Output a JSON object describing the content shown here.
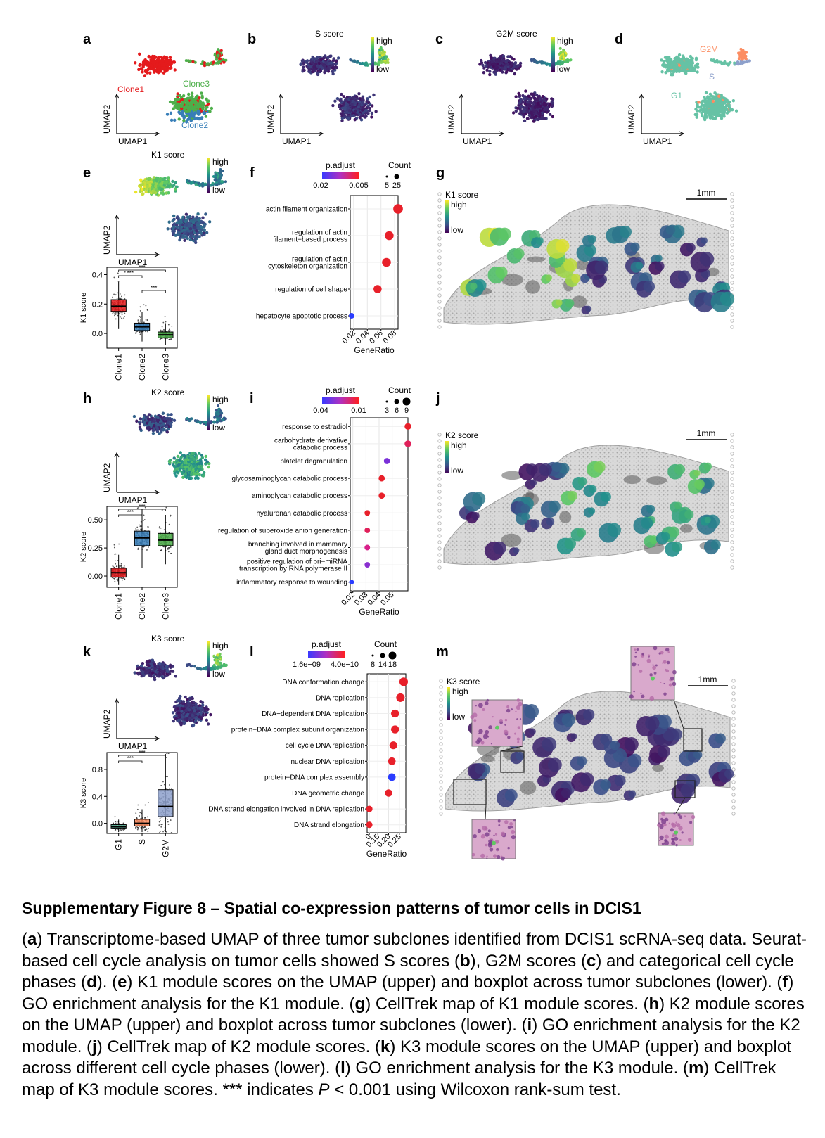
{
  "figure": {
    "panel_letters": [
      "a",
      "b",
      "c",
      "d",
      "e",
      "f",
      "g",
      "h",
      "i",
      "j",
      "k",
      "l",
      "m"
    ],
    "umap": {
      "xlabel": "UMAP1",
      "ylabel": "UMAP2",
      "high": "high",
      "low": "low",
      "a_labels": [
        "Clone1",
        "Clone3",
        "Clone2"
      ],
      "d_labels": [
        "G2M",
        "S",
        "G1"
      ],
      "b_title": "S score",
      "c_title": "G2M score",
      "e_title": "K1 score",
      "h_title": "K2 score",
      "k_title": "K3 score"
    },
    "colors": {
      "clone1": "#e41a1c",
      "clone2": "#377eb8",
      "clone3": "#4daf4a",
      "g1": "#66c2a5",
      "s": "#8da0cb",
      "g2m": "#fc8d62",
      "viridis_low": "#440154",
      "viridis_high": "#fde725",
      "padj_low": "#1f1fff",
      "padj_high": "#ff1f1f"
    },
    "spatial": {
      "scale_label": "1mm",
      "g_title": "K1 score",
      "j_title": "K2 score",
      "m_title": "K3 score",
      "high": "high",
      "low": "low"
    },
    "significance": "***"
  },
  "chart_data": [
    {
      "panel": "e",
      "type": "box",
      "ylabel": "K1 score",
      "categories": [
        "Clone1",
        "Clone2",
        "Clone3"
      ],
      "yticks": [
        "0.0",
        "0.2",
        "0.4"
      ],
      "ylim": [
        -0.1,
        0.45
      ],
      "boxes": [
        {
          "q1": 0.15,
          "median": 0.185,
          "q3": 0.23,
          "color": "#e41a1c"
        },
        {
          "q1": 0.02,
          "median": 0.045,
          "q3": 0.07,
          "color": "#377eb8"
        },
        {
          "q1": -0.03,
          "median": -0.01,
          "q3": 0.01,
          "color": "#4daf4a"
        }
      ]
    },
    {
      "panel": "h",
      "type": "box",
      "ylabel": "K2 score",
      "categories": [
        "Clone1",
        "Clone2",
        "Clone3"
      ],
      "yticks": [
        "0.00",
        "0.25",
        "0.50"
      ],
      "ylim": [
        -0.1,
        0.62
      ],
      "boxes": [
        {
          "q1": -0.01,
          "median": 0.03,
          "q3": 0.07,
          "color": "#e41a1c"
        },
        {
          "q1": 0.27,
          "median": 0.34,
          "q3": 0.4,
          "color": "#377eb8"
        },
        {
          "q1": 0.27,
          "median": 0.32,
          "q3": 0.38,
          "color": "#4daf4a"
        }
      ]
    },
    {
      "panel": "k",
      "type": "box",
      "ylabel": "K3 score",
      "categories": [
        "G1",
        "S",
        "G2M"
      ],
      "yticks": [
        "0.0",
        "0.4",
        "0.8"
      ],
      "ylim": [
        -0.15,
        1.05
      ],
      "boxes": [
        {
          "q1": -0.07,
          "median": -0.05,
          "q3": -0.02,
          "color": "#66c2a5"
        },
        {
          "q1": -0.04,
          "median": 0.0,
          "q3": 0.06,
          "color": "#fc8d62"
        },
        {
          "q1": 0.1,
          "median": 0.25,
          "q3": 0.5,
          "color": "#8da0cb"
        }
      ]
    },
    {
      "panel": "f",
      "type": "dotplot",
      "xlabel": "GeneRatio",
      "legend_title_color": "p.adjust",
      "legend_color_ticks": [
        "0.02",
        "0.005"
      ],
      "legend_title_size": "Count",
      "legend_size_ticks": [
        "5",
        "25"
      ],
      "xticks": [
        "0.02",
        "0.04",
        "0.06",
        "0.08"
      ],
      "xlim": [
        0.015,
        0.085
      ],
      "terms": [
        {
          "label": [
            "actin filament organization"
          ],
          "x": 0.085,
          "color": "#e8202a",
          "size": 25
        },
        {
          "label": [
            "regulation of actin",
            "filament−based process"
          ],
          "x": 0.072,
          "color": "#e8202a",
          "size": 20
        },
        {
          "label": [
            "regulation of actin",
            "cytoskeleton organization"
          ],
          "x": 0.068,
          "color": "#e8202a",
          "size": 20
        },
        {
          "label": [
            "regulation of cell shape"
          ],
          "x": 0.055,
          "color": "#e8202a",
          "size": 16
        },
        {
          "label": [
            "hepatocyte apoptotic process"
          ],
          "x": 0.017,
          "color": "#2a3cff",
          "size": 5
        }
      ]
    },
    {
      "panel": "i",
      "type": "dotplot",
      "xlabel": "GeneRatio",
      "legend_title_color": "p.adjust",
      "legend_color_ticks": [
        "0.04",
        "0.01"
      ],
      "legend_title_size": "Count",
      "legend_size_ticks": [
        "3",
        "6",
        "9"
      ],
      "xticks": [
        "0.02",
        "0.03",
        "0.04",
        "0.05"
      ],
      "xlim": [
        0.018,
        0.062
      ],
      "terms": [
        {
          "label": [
            "response to estradiol"
          ],
          "x": 0.062,
          "color": "#e8202a",
          "size": 9
        },
        {
          "label": [
            "carbohydrate derivative",
            "catabolic process"
          ],
          "x": 0.062,
          "color": "#e0205a",
          "size": 9
        },
        {
          "label": [
            "platelet degranulation"
          ],
          "x": 0.046,
          "color": "#7a30d8",
          "size": 7
        },
        {
          "label": [
            "glycosaminoglycan catabolic process"
          ],
          "x": 0.042,
          "color": "#e8202a",
          "size": 7
        },
        {
          "label": [
            "aminoglycan catabolic process"
          ],
          "x": 0.042,
          "color": "#e8202a",
          "size": 7
        },
        {
          "label": [
            "hyaluronan catabolic process"
          ],
          "x": 0.031,
          "color": "#e8202a",
          "size": 5
        },
        {
          "label": [
            "regulation of superoxide anion generation"
          ],
          "x": 0.031,
          "color": "#e0205a",
          "size": 5
        },
        {
          "label": [
            "branching involved in mammary",
            "gland duct morphogenesis"
          ],
          "x": 0.031,
          "color": "#d8208a",
          "size": 5
        },
        {
          "label": [
            "positive regulation of pri−miRNA",
            "transcription by RNA polymerase II"
          ],
          "x": 0.031,
          "color": "#8a30d0",
          "size": 5
        },
        {
          "label": [
            "inflammatory response to wounding"
          ],
          "x": 0.019,
          "color": "#2a3cff",
          "size": 3
        }
      ]
    },
    {
      "panel": "l",
      "type": "dotplot",
      "xlabel": "GeneRatio",
      "legend_title_color": "p.adjust",
      "legend_color_ticks": [
        "1.6e−09",
        "4.0e−10"
      ],
      "legend_title_size": "Count",
      "legend_size_ticks": [
        "8",
        "14",
        "18"
      ],
      "xticks": [
        "0",
        "0.15",
        "0.20",
        "0.25"
      ],
      "xlim": [
        0.1,
        0.28
      ],
      "terms": [
        {
          "label": [
            "DNA conformation change"
          ],
          "x": 0.27,
          "color": "#e8202a",
          "size": 18
        },
        {
          "label": [
            "DNA replication"
          ],
          "x": 0.255,
          "color": "#e8202a",
          "size": 18
        },
        {
          "label": [
            "DNA−dependent DNA replication"
          ],
          "x": 0.23,
          "color": "#e8202a",
          "size": 15
        },
        {
          "label": [
            "protein−DNA complex subunit organization"
          ],
          "x": 0.23,
          "color": "#e8202a",
          "size": 15
        },
        {
          "label": [
            "cell cycle DNA replication"
          ],
          "x": 0.222,
          "color": "#e8202a",
          "size": 14
        },
        {
          "label": [
            "nuclear DNA replication"
          ],
          "x": 0.215,
          "color": "#e8202a",
          "size": 13
        },
        {
          "label": [
            "protein−DNA complex assembly"
          ],
          "x": 0.215,
          "color": "#2a3cff",
          "size": 13
        },
        {
          "label": [
            "DNA geometric change"
          ],
          "x": 0.2,
          "color": "#e8202a",
          "size": 12
        },
        {
          "label": [
            "DNA strand elongation involved in DNA replication"
          ],
          "x": 0.11,
          "color": "#e8202a",
          "size": 8
        },
        {
          "label": [
            "DNA strand elongation"
          ],
          "x": 0.11,
          "color": "#e8202a",
          "size": 8
        }
      ]
    }
  ],
  "caption": {
    "title": "Supplementary Figure 8 – Spatial co-expression patterns of tumor cells in DCIS1",
    "parts": [
      {
        "t": "(",
        "b": false
      },
      {
        "t": "a",
        "b": true
      },
      {
        "t": ") Transcriptome-based UMAP of three tumor subclones identified from DCIS1 scRNA-seq data. Seurat-based cell cycle analysis on tumor cells showed S scores (",
        "b": false
      },
      {
        "t": "b",
        "b": true
      },
      {
        "t": "), G2M scores (",
        "b": false
      },
      {
        "t": "c",
        "b": true
      },
      {
        "t": ") and categorical cell cycle phases (",
        "b": false
      },
      {
        "t": "d",
        "b": true
      },
      {
        "t": "). (",
        "b": false
      },
      {
        "t": "e",
        "b": true
      },
      {
        "t": ") K1 module scores on the UMAP (upper) and boxplot across tumor subclones (lower). (",
        "b": false
      },
      {
        "t": "f",
        "b": true
      },
      {
        "t": ") GO enrichment analysis for the K1 module. (",
        "b": false
      },
      {
        "t": "g",
        "b": true
      },
      {
        "t": ") CellTrek map of K1 module scores. (",
        "b": false
      },
      {
        "t": "h",
        "b": true
      },
      {
        "t": ") K2 module scores on the UMAP (upper) and boxplot across tumor subclones (lower). (",
        "b": false
      },
      {
        "t": "i",
        "b": true
      },
      {
        "t": ") GO enrichment analysis for the K2 module. (",
        "b": false
      },
      {
        "t": "j",
        "b": true
      },
      {
        "t": ") CellTrek map of K2 module scores. (",
        "b": false
      },
      {
        "t": "k",
        "b": true
      },
      {
        "t": ") K3 module scores on the UMAP (upper) and boxplot across different cell cycle phases (lower). (",
        "b": false
      },
      {
        "t": "l",
        "b": true
      },
      {
        "t": ") GO enrichment analysis for the K3 module. (",
        "b": false
      },
      {
        "t": "m",
        "b": true
      },
      {
        "t": ") CellTrek map of K3 module scores. *** indicates ",
        "b": false
      },
      {
        "t": "P",
        "b": false,
        "i": true
      },
      {
        "t": " < 0.001 using Wilcoxon rank-sum test.",
        "b": false
      }
    ]
  }
}
